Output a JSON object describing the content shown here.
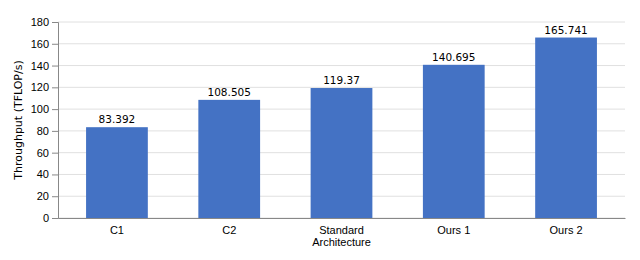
{
  "chart_data": {
    "type": "bar",
    "categories": [
      "C1",
      "C2",
      "Standard\nArchitecture",
      "Ours 1",
      "Ours 2"
    ],
    "values": [
      83.392,
      108.505,
      119.37,
      140.695,
      165.741
    ],
    "color": "#4472C4",
    "ylabel": "Throughput (TFLOP/s)",
    "ylim": [
      0,
      180
    ],
    "yticks": [
      0,
      20,
      40,
      60,
      80,
      100,
      120,
      140,
      160,
      180
    ],
    "grid": true,
    "data_labels": true
  }
}
